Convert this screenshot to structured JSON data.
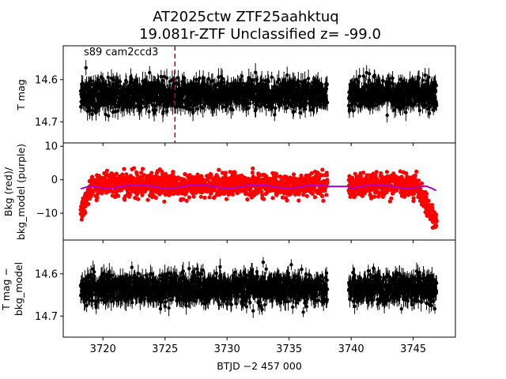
{
  "chart_data": {
    "type": "scatter",
    "title_line1": "AT2025ctw  ZTF25aahktuq",
    "title_line2": "19.081r-ZTF Unclassified z= -99.0",
    "annotation": "s89 cam2ccd3",
    "xlabel": "BTJD −2 457 000",
    "x_ticks": [
      "3720",
      "3725",
      "3730",
      "3735",
      "3740",
      "3745"
    ],
    "x_tick_values": [
      3720,
      3725,
      3730,
      3735,
      3740,
      3745
    ],
    "xlim": [
      3716.8,
      3748.4
    ],
    "event_marker_x": 3725.8,
    "data_segments": [
      [
        3718.2,
        3738.1
      ],
      [
        3739.8,
        3746.9
      ]
    ],
    "colors": {
      "points": "#000000",
      "bkg": "#ff0000",
      "bkg_model": "#aa00cc",
      "marker": "#cc0000"
    },
    "panels": [
      {
        "id": "top",
        "ylabel": "T mag",
        "ylim": [
          14.52,
          14.75
        ],
        "inverted": true,
        "y_ticks": [
          "14.6",
          "14.7"
        ],
        "y_tick_values": [
          14.6,
          14.7
        ],
        "series_center": 14.635,
        "series_spread": 0.045
      },
      {
        "id": "middle",
        "ylabel_line1": "Bkg (red)/",
        "ylabel_line2": "bkg_model (purple)",
        "ylim": [
          -18,
          11
        ],
        "inverted": false,
        "y_ticks": [
          "10",
          "0",
          "−10"
        ],
        "y_tick_values": [
          10,
          0,
          -10
        ],
        "series_center": -1.5,
        "series_spread": 4.5,
        "model_level": -2
      },
      {
        "id": "bottom",
        "ylabel_line1": "T mag −",
        "ylabel_line2": "bkg_model",
        "ylim": [
          14.52,
          14.75
        ],
        "inverted": true,
        "y_ticks": [
          "14.6",
          "14.7"
        ],
        "y_tick_values": [
          14.6,
          14.7
        ],
        "series_center": 14.635,
        "series_spread": 0.045
      }
    ]
  }
}
